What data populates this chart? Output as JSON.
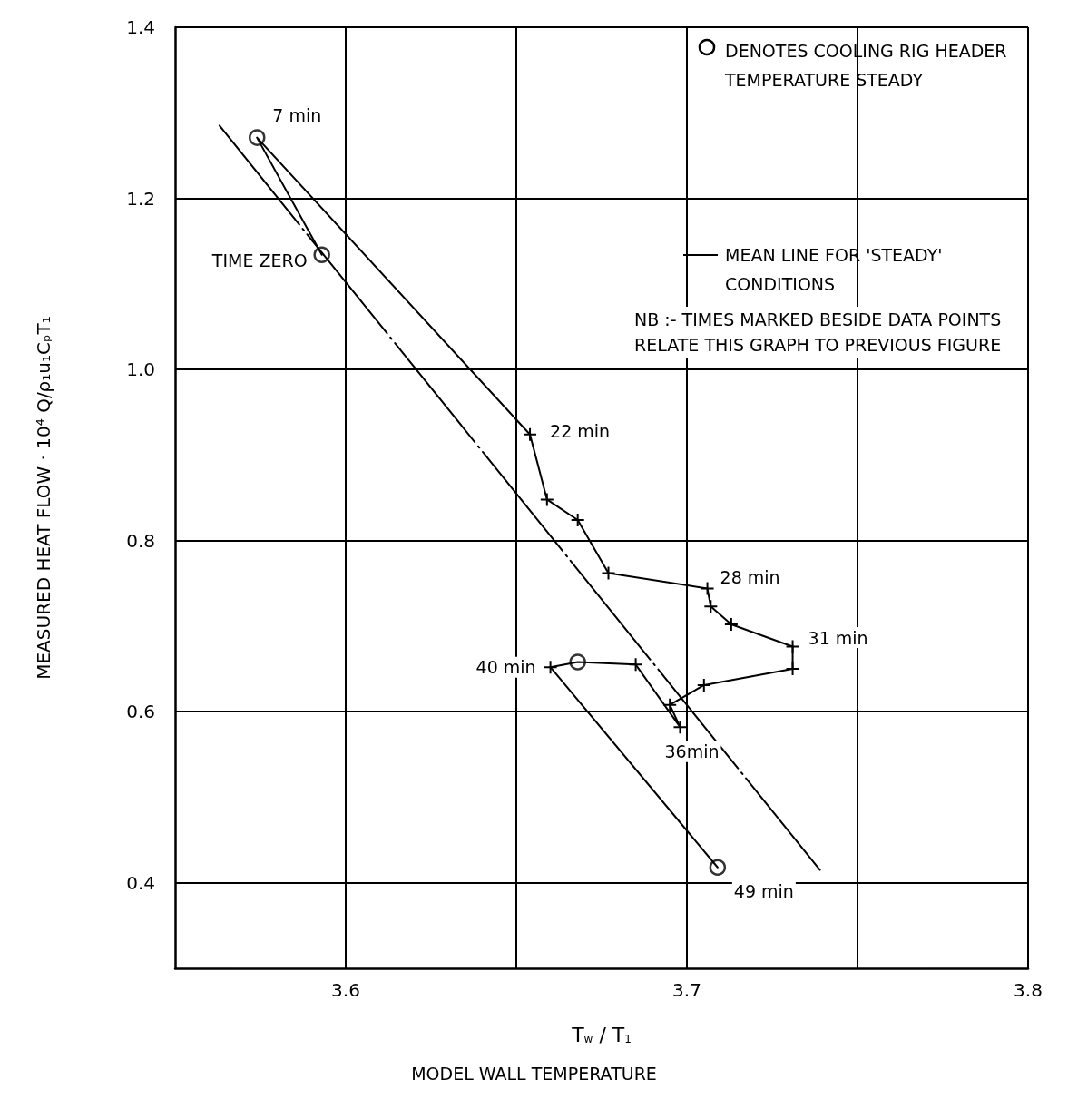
{
  "chart_data": {
    "type": "line",
    "xlabel": "T$_{w}$ / T$_{1}$",
    "ylabel": "MEASURED HEAT FLOW · 10⁴ Q/ρ₁u₁CₚT₁",
    "xlim": [
      3.55,
      3.8
    ],
    "xticks": [
      3.6,
      {
        "value": 3.65,
        "label": null
      },
      3.7,
      {
        "value": 3.75,
        "label": null
      },
      3.8
    ],
    "ylim": [
      0.3,
      1.4
    ],
    "yticks": [
      0.4,
      0.6,
      0.8,
      {
        "value": 1.0,
        "label": "1.0"
      },
      1.2,
      1.4
    ],
    "grid": true,
    "legend": "top right",
    "series": [
      {
        "color": "#000000",
        "marker": "cross",
        "line_style": "solid",
        "x": [
          3.593,
          3.574,
          3.654,
          3.659,
          3.668,
          3.677,
          3.706,
          3.707,
          3.713,
          3.731,
          3.731,
          3.705,
          3.695,
          3.698,
          3.685,
          3.668,
          3.66,
          3.709
        ],
        "values": [
          1.134,
          1.271,
          0.924,
          0.848,
          0.824,
          0.762,
          0.744,
          0.723,
          0.702,
          0.676,
          0.65,
          0.631,
          0.608,
          0.582,
          0.655,
          0.658,
          0.652,
          0.418
        ]
      },
      {
        "type": "scatter",
        "name": "DENOTES COOLING RIG HEADER TEMPERATURE STEADY",
        "color": "#000000",
        "marker": "circle",
        "x": [
          3.593,
          3.574,
          3.668,
          3.709
        ],
        "values": [
          1.134,
          1.271,
          0.658,
          0.418
        ]
      },
      {
        "type": "line",
        "name": "MEAN LINE FOR 'STEADY' CONDITIONS",
        "color": "#000000",
        "marker": "none",
        "line_style": "dashed",
        "x": [
          3.563,
          3.739
        ],
        "values": [
          1.285,
          0.415
        ]
      }
    ],
    "annotations": [
      {
        "text": "7 min",
        "x": 3.574,
        "y": 1.271
      },
      {
        "text": "TIME ZERO",
        "x": 3.593,
        "y": 1.134
      },
      {
        "text": "22 min",
        "x": 3.654,
        "y": 0.924
      },
      {
        "text": "28 min",
        "x": 3.706,
        "y": 0.744
      },
      {
        "text": "31 min",
        "x": 3.731,
        "y": 0.676
      },
      {
        "text": "36min",
        "x": 3.698,
        "y": 0.582
      },
      {
        "text": "40 min",
        "x": 3.66,
        "y": 0.652
      },
      {
        "text": "49 min",
        "x": 3.709,
        "y": 0.418
      },
      "NB :- TIMES MARKED BESIDE DATA POINTS RELATE THIS GRAPH TO PREVIOUS FIGURE",
      "MODEL WALL TEMPERATURE"
    ]
  }
}
